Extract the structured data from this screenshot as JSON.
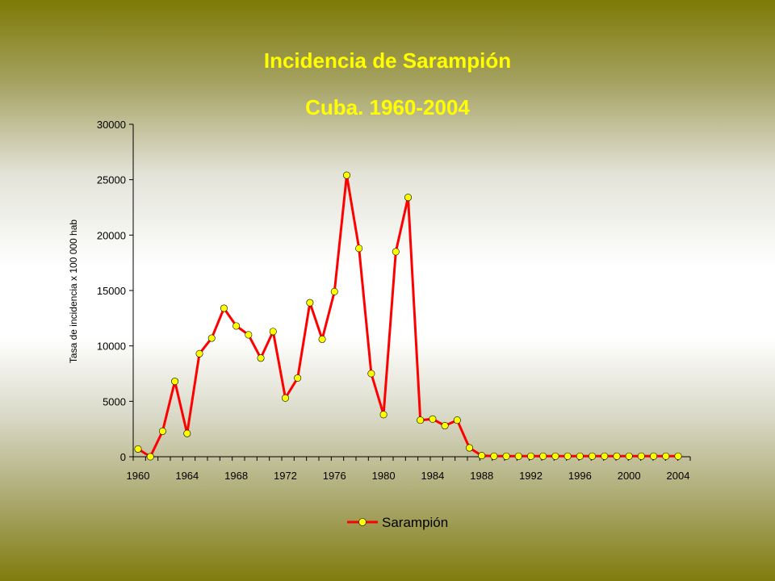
{
  "title": "Incidencia de Sarampión",
  "subtitle": "Cuba. 1960-2004",
  "chart_data": {
    "type": "line",
    "title": "Incidencia de Sarampión",
    "subtitle": "Cuba. 1960-2004",
    "xlabel": "",
    "ylabel": "Tasa de incidencia x 100 000 hab",
    "xlim": [
      1960,
      2004
    ],
    "ylim": [
      0,
      30000
    ],
    "x_ticks": [
      1960,
      1964,
      1968,
      1972,
      1976,
      1980,
      1984,
      1988,
      1992,
      1996,
      2000,
      2004
    ],
    "y_ticks": [
      0,
      5000,
      10000,
      15000,
      20000,
      25000,
      30000
    ],
    "grid": false,
    "legend": "bottom",
    "series": [
      {
        "name": "Sarampión",
        "color": "#ff0000",
        "marker_color": "#ffff00",
        "x": [
          1960,
          1961,
          1962,
          1963,
          1964,
          1965,
          1966,
          1967,
          1968,
          1969,
          1970,
          1971,
          1972,
          1973,
          1974,
          1975,
          1976,
          1977,
          1978,
          1979,
          1980,
          1981,
          1982,
          1983,
          1984,
          1985,
          1986,
          1987,
          1988,
          1989,
          1990,
          1991,
          1992,
          1993,
          1994,
          1995,
          1996,
          1997,
          1998,
          1999,
          2000,
          2001,
          2002,
          2003,
          2004
        ],
        "values": [
          700,
          0,
          2300,
          6800,
          2100,
          9300,
          10700,
          13400,
          11800,
          11000,
          8900,
          11300,
          5300,
          7100,
          13900,
          10600,
          14900,
          25400,
          18800,
          7500,
          3800,
          18500,
          23400,
          3300,
          3400,
          2800,
          3300,
          800,
          100,
          50,
          50,
          50,
          50,
          50,
          50,
          50,
          50,
          50,
          50,
          50,
          50,
          50,
          50,
          50,
          50
        ]
      }
    ]
  }
}
